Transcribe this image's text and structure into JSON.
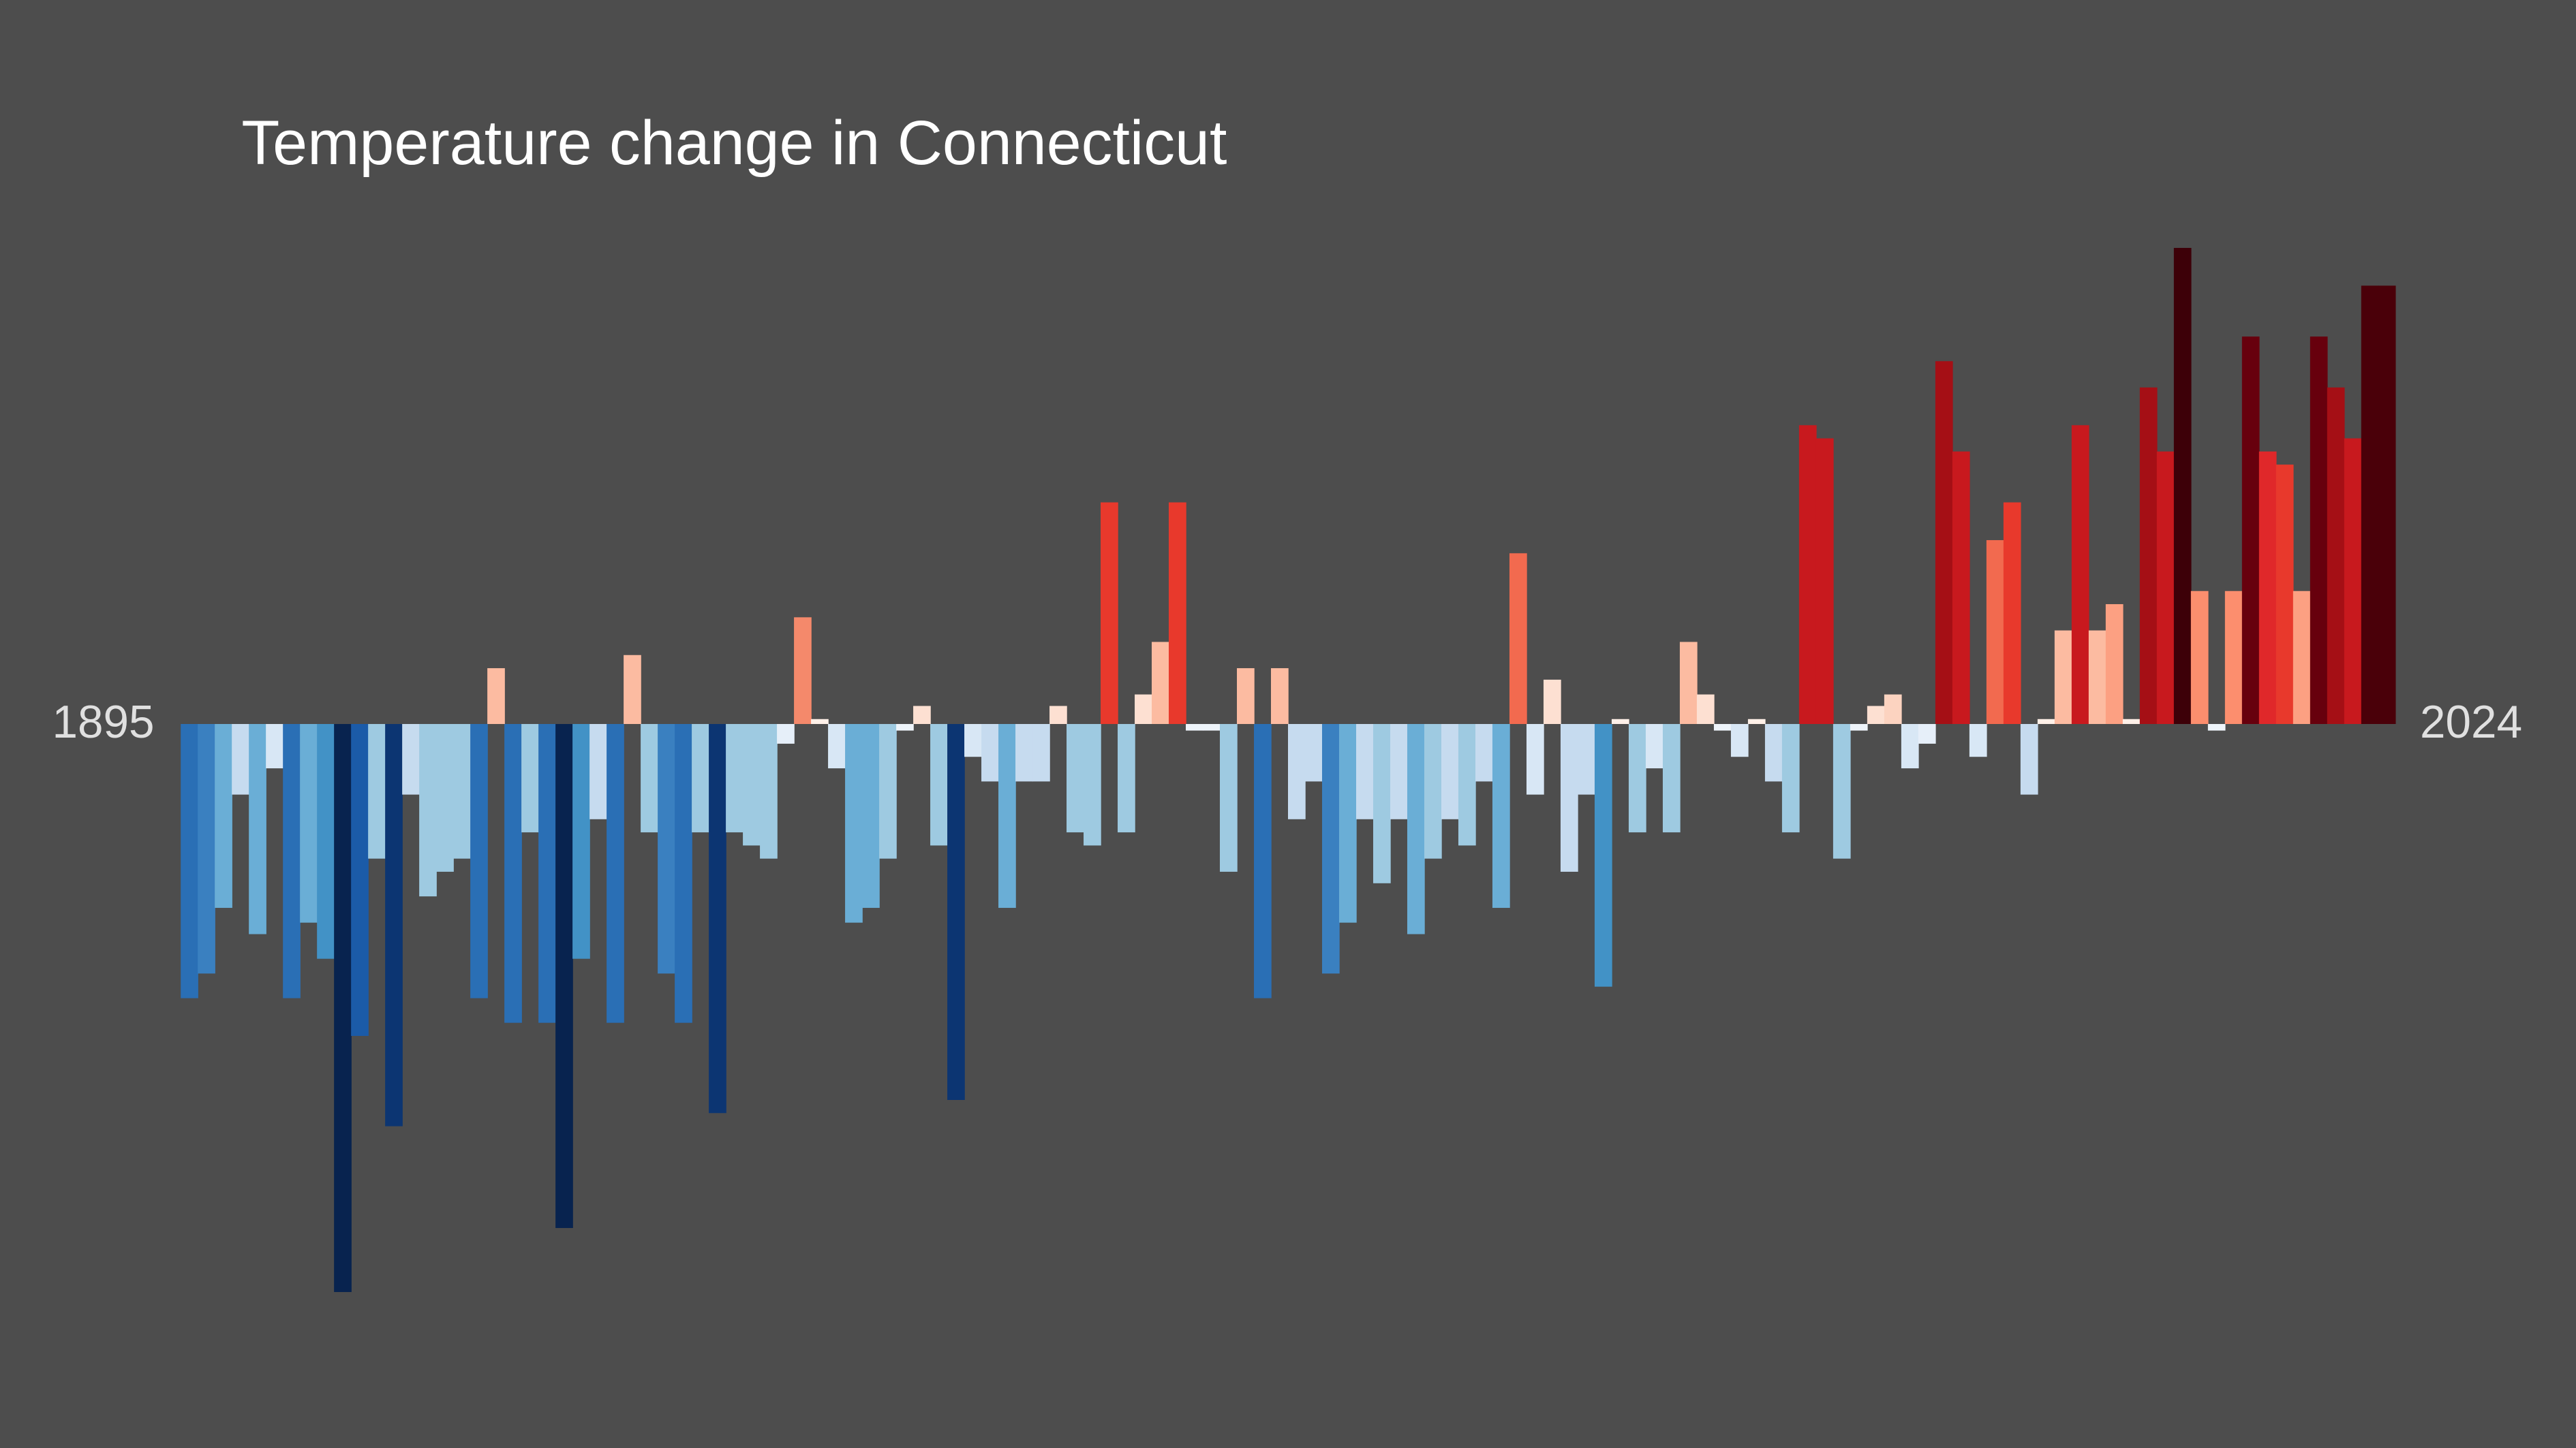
{
  "chart_data": {
    "type": "bar",
    "title": "Temperature change in Connecticut",
    "categories": [
      "1895",
      null,
      null,
      null,
      null,
      null,
      null,
      null,
      null,
      null,
      null,
      null,
      null,
      null,
      null,
      null,
      null,
      null,
      null,
      null,
      null,
      null,
      null,
      null,
      null,
      null,
      null,
      null,
      null,
      null,
      null,
      null,
      null,
      null,
      null,
      null,
      null,
      null,
      null,
      null,
      null,
      null,
      null,
      null,
      null,
      null,
      null,
      null,
      null,
      null,
      null,
      null,
      null,
      null,
      null,
      null,
      null,
      null,
      null,
      null,
      null,
      null,
      null,
      null,
      null,
      null,
      null,
      null,
      null,
      null,
      null,
      null,
      null,
      null,
      null,
      null,
      null,
      null,
      null,
      null,
      null,
      null,
      null,
      null,
      null,
      null,
      null,
      null,
      null,
      null,
      null,
      null,
      null,
      null,
      null,
      null,
      null,
      null,
      null,
      null,
      null,
      null,
      null,
      null,
      null,
      null,
      null,
      null,
      null,
      null,
      null,
      null,
      null,
      null,
      null,
      null,
      null,
      null,
      null,
      null,
      null,
      null,
      null,
      null,
      null,
      null,
      null,
      null,
      null,
      "2024"
    ],
    "values": [
      -1.67,
      -1.52,
      -1.12,
      -0.43,
      -1.28,
      -0.27,
      -1.67,
      -1.21,
      -1.43,
      -3.46,
      -1.9,
      -0.82,
      -2.45,
      -0.43,
      -1.05,
      -0.9,
      -0.82,
      -1.67,
      0.34,
      -1.82,
      -0.66,
      -1.82,
      -3.07,
      -1.43,
      -0.58,
      -1.82,
      0.42,
      -0.66,
      -1.52,
      -1.82,
      -0.66,
      -2.37,
      -0.66,
      -0.74,
      -0.82,
      -0.12,
      0.65,
      0.03,
      -0.27,
      -1.21,
      -1.12,
      -0.82,
      -0.04,
      0.11,
      -0.74,
      -2.29,
      -0.2,
      -0.35,
      -1.12,
      -0.35,
      -0.35,
      0.11,
      -0.66,
      -0.74,
      1.35,
      -0.66,
      0.18,
      0.5,
      1.35,
      -0.04,
      -0.04,
      -0.9,
      0.34,
      -1.67,
      0.34,
      -0.58,
      -0.35,
      -1.52,
      -1.21,
      -0.58,
      -0.97,
      -0.58,
      -1.28,
      -0.82,
      -0.58,
      -0.74,
      -0.35,
      -1.12,
      1.04,
      -0.43,
      0.27,
      -0.9,
      -0.43,
      -1.6,
      0.03,
      -0.66,
      -0.27,
      -0.66,
      0.5,
      0.18,
      -0.04,
      -0.2,
      0.03,
      -0.35,
      -0.66,
      1.82,
      1.74,
      -0.82,
      -0.04,
      0.11,
      0.18,
      -0.27,
      -0.12,
      2.21,
      1.66,
      -0.2,
      1.12,
      1.35,
      -0.43,
      0.03,
      0.57,
      1.82,
      0.57,
      0.73,
      0.03,
      2.05,
      1.66,
      2.9,
      0.81,
      -0.04,
      0.81,
      2.36,
      1.66,
      1.58,
      0.81,
      2.36,
      2.05,
      1.74,
      2.67,
      2.67
    ],
    "colors": [
      "#2a6fb5",
      "#3a80c0",
      "#6aaed6",
      "#c6dbef",
      "#6aaed6",
      "#d8e7f5",
      "#2a6fb5",
      "#6aaed6",
      "#4292c6",
      "#08234f",
      "#1b5ba8",
      "#9ecae1",
      "#0c3572",
      "#c6dbef",
      "#9ecae1",
      "#9ecae1",
      "#9ecae1",
      "#2a6fb5",
      "#fcbba1",
      "#2a6fb5",
      "#9ecae1",
      "#2a6fb5",
      "#08234f",
      "#4292c6",
      "#c6dbef",
      "#2a6fb5",
      "#fcbba1",
      "#9ecae1",
      "#3a80c0",
      "#2a6fb5",
      "#9ecae1",
      "#0c3572",
      "#9ecae1",
      "#9ecae1",
      "#9ecae1",
      "#e6eff9",
      "#f4896b",
      "#fff0e8",
      "#d8e7f5",
      "#6aaed6",
      "#6aaed6",
      "#9ecae1",
      "#eef4fa",
      "#fde0d2",
      "#9ecae1",
      "#0c3572",
      "#d8e7f5",
      "#c6dbef",
      "#6aaed6",
      "#c6dbef",
      "#c6dbef",
      "#fde0d2",
      "#9ecae1",
      "#9ecae1",
      "#e8392c",
      "#9ecae1",
      "#fde0d2",
      "#fcbba1",
      "#e8392c",
      "#eef4fa",
      "#eef4fa",
      "#9ecae1",
      "#fcbba1",
      "#2a6fb5",
      "#fcbba1",
      "#c6dbef",
      "#c6dbef",
      "#3a80c0",
      "#6aaed6",
      "#c6dbef",
      "#9ecae1",
      "#c6dbef",
      "#6aaed6",
      "#9ecae1",
      "#c6dbef",
      "#9ecae1",
      "#c6dbef",
      "#6aaed6",
      "#f26a4f",
      "#d8e7f5",
      "#fde0d2",
      "#c6dbef",
      "#c6dbef",
      "#4292c6",
      "#fff0e8",
      "#9ecae1",
      "#d8e7f5",
      "#9ecae1",
      "#fcbba1",
      "#fde0d2",
      "#eef4fa",
      "#d8e7f5",
      "#fff0e8",
      "#c6dbef",
      "#9ecae1",
      "#c8191e",
      "#c8191e",
      "#9ecae1",
      "#eef4fa",
      "#fde0d2",
      "#fcd3c0",
      "#d8e7f5",
      "#e6eff9",
      "#a50f15",
      "#c8191e",
      "#d8e7f5",
      "#f26a4f",
      "#e8392c",
      "#c6dbef",
      "#fff0e8",
      "#fcbba1",
      "#c8191e",
      "#fcbba1",
      "#fca082",
      "#fff0e8",
      "#a50f15",
      "#c8191e",
      "#3d0008",
      "#fc8e6e",
      "#eef4fa",
      "#fc8e6e",
      "#67000d",
      "#e0282a",
      "#e8392c",
      "#fca082",
      "#67000d",
      "#a50f15",
      "#c8191e",
      "#4a0009",
      "#4a0009"
    ],
    "ylim": [
      -4.41,
      4.41
    ]
  }
}
